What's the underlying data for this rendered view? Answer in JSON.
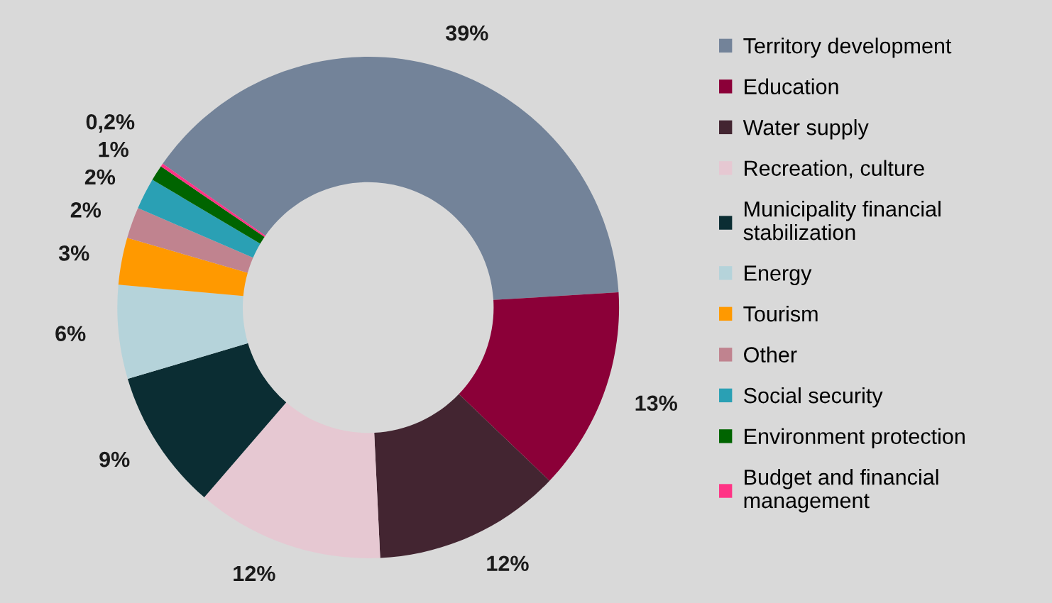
{
  "chart_data": {
    "type": "donut",
    "categories": [
      "Territory development",
      "Education",
      "Water supply",
      "Recreation, culture",
      "Municipality financial\nstabilization",
      "Energy",
      "Tourism",
      "Other",
      "Social security",
      "Environment protection",
      "Budget and financial\nmanagement"
    ],
    "values": [
      39,
      13,
      12,
      12,
      9,
      6,
      3,
      2,
      2,
      1,
      0.2
    ],
    "value_labels": [
      "39%",
      "13%",
      "12%",
      "12%",
      "9%",
      "6%",
      "3%",
      "2%",
      "2%",
      "1%",
      "0,2%"
    ],
    "colors": [
      "#738399",
      "#8b0038",
      "#432531",
      "#e6c8d2",
      "#0b2d33",
      "#b5d3da",
      "#ff9900",
      "#c0838f",
      "#2aa0b4",
      "#006400",
      "#ff3385"
    ],
    "legend": "right"
  }
}
